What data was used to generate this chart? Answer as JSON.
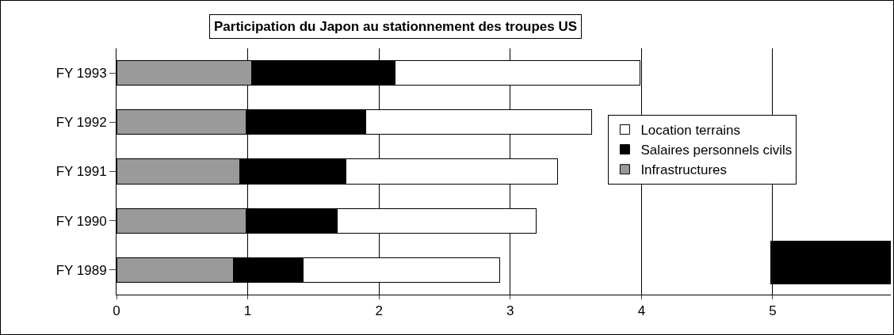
{
  "chart_data": {
    "type": "bar",
    "orientation": "horizontal",
    "stacked": true,
    "title": "Participation du Japon au stationnement des troupes US",
    "categories": [
      "FY 1993",
      "FY 1992",
      "FY 1991",
      "FY 1990",
      "FY 1989"
    ],
    "series": [
      {
        "name": "Infrastructures",
        "color": "#9a9a9a",
        "values": [
          1.03,
          0.99,
          0.94,
          0.99,
          0.89
        ]
      },
      {
        "name": "Salaires personnels civils",
        "color": "#000000",
        "values": [
          1.09,
          0.91,
          0.81,
          0.69,
          0.53
        ]
      },
      {
        "name": "Location terrains",
        "color": "#ffffff",
        "values": [
          1.87,
          1.72,
          1.61,
          1.52,
          1.5
        ]
      }
    ],
    "xlim": [
      0,
      5.9
    ],
    "xticks": [
      0,
      1,
      2,
      3,
      4,
      5
    ],
    "grid": "x",
    "legend": "right"
  }
}
